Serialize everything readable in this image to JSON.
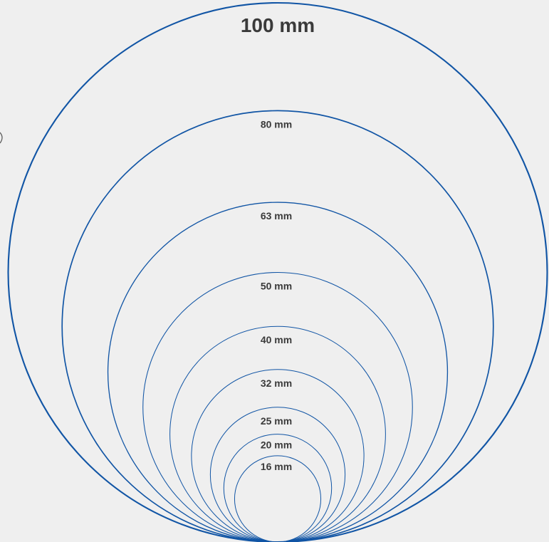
{
  "diagram": {
    "stroke_color": "#1155a5",
    "background_color": "#efefef",
    "label_color": "#3a3a3a",
    "sizes": [
      {
        "diameter_mm": 100,
        "label": "100 mm"
      },
      {
        "diameter_mm": 80,
        "label": "80 mm"
      },
      {
        "diameter_mm": 63,
        "label": "63 mm"
      },
      {
        "diameter_mm": 50,
        "label": "50 mm"
      },
      {
        "diameter_mm": 40,
        "label": "40 mm"
      },
      {
        "diameter_mm": 32,
        "label": "32 mm"
      },
      {
        "diameter_mm": 25,
        "label": "25 mm"
      },
      {
        "diameter_mm": 20,
        "label": "20 mm"
      },
      {
        "diameter_mm": 16,
        "label": "16 mm"
      }
    ]
  }
}
